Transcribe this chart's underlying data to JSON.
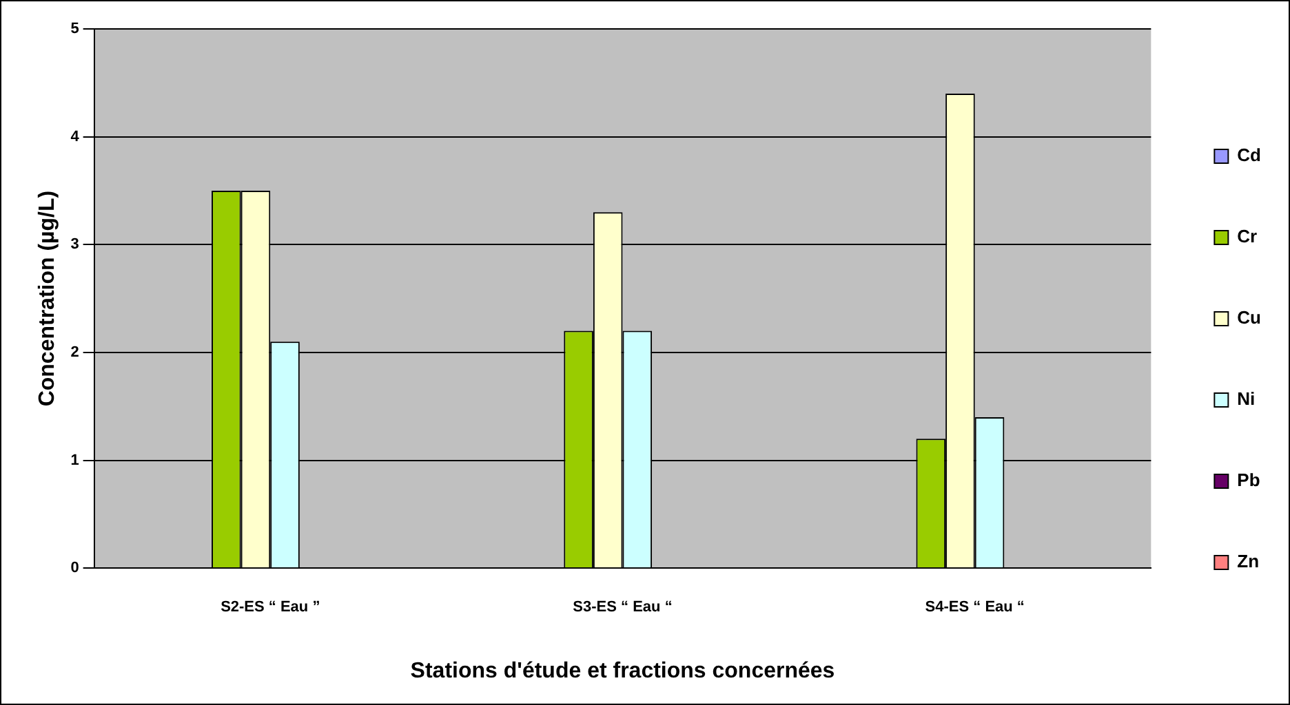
{
  "chart_data": {
    "type": "bar",
    "xlabel": "Stations d'étude et fractions concernées",
    "ylabel": "Concentration (µg/L)",
    "categories": [
      "S2-ES “ Eau ”",
      "S3-ES “ Eau “",
      "S4-ES “ Eau “"
    ],
    "series": [
      {
        "name": "Cd",
        "color": "#9999ff",
        "values": [
          null,
          null,
          null
        ]
      },
      {
        "name": "Cr",
        "color": "#99cc00",
        "values": [
          3.5,
          2.2,
          1.2
        ]
      },
      {
        "name": "Cu",
        "color": "#ffffcc",
        "values": [
          3.5,
          3.3,
          4.4
        ]
      },
      {
        "name": "Ni",
        "color": "#ccffff",
        "values": [
          2.1,
          2.2,
          1.4
        ]
      },
      {
        "name": "Pb",
        "color": "#660066",
        "values": [
          null,
          null,
          null
        ]
      },
      {
        "name": "Zn",
        "color": "#ff8080",
        "values": [
          null,
          null,
          null
        ]
      }
    ],
    "ylim": [
      0,
      5
    ],
    "yticks": [
      0,
      1,
      2,
      3,
      4,
      5
    ],
    "grid": "y",
    "legend": "right"
  }
}
